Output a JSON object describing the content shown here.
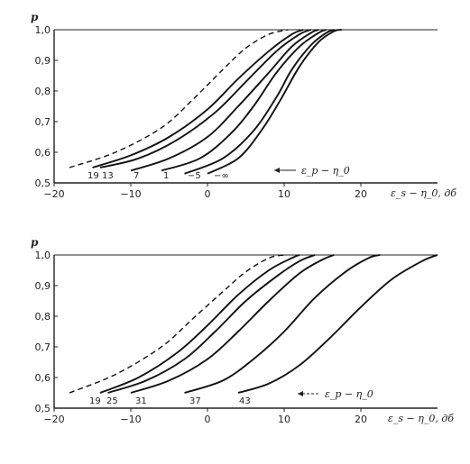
{
  "chart_data": [
    {
      "type": "line",
      "ylabel": "p",
      "xlabel": "ε_s − η_0, дб",
      "legend_text": "ε_p − η_0",
      "xlim": [
        -20,
        30
      ],
      "ylim": [
        0.5,
        1.0
      ],
      "x_ticks": [
        -20,
        -10,
        0,
        10,
        20
      ],
      "x_tick_labels": [
        "−20",
        "−10",
        "0",
        "10",
        "20"
      ],
      "y_ticks": [
        0.5,
        0.6,
        0.7,
        0.8,
        0.9,
        1.0
      ],
      "y_tick_labels": [
        "0,5",
        "0,6",
        "0,7",
        "0,8",
        "0,9",
        "1,0"
      ],
      "series": [
        {
          "label": "",
          "dashed": true,
          "points": [
            [
              -18,
              0.55
            ],
            [
              -12,
              0.6
            ],
            [
              -6,
              0.68
            ],
            [
              -2,
              0.77
            ],
            [
              2,
              0.87
            ],
            [
              5,
              0.94
            ],
            [
              8,
              0.985
            ],
            [
              10.5,
              1.0
            ]
          ]
        },
        {
          "label": "19",
          "dashed": false,
          "points": [
            [
              -15,
              0.55
            ],
            [
              -10,
              0.59
            ],
            [
              -5,
              0.65
            ],
            [
              0,
              0.74
            ],
            [
              4,
              0.84
            ],
            [
              8,
              0.93
            ],
            [
              11,
              0.985
            ],
            [
              12.5,
              1.0
            ]
          ]
        },
        {
          "label": "13",
          "dashed": false,
          "points": [
            [
              -14,
              0.55
            ],
            [
              -9,
              0.58
            ],
            [
              -4,
              0.64
            ],
            [
              1,
              0.73
            ],
            [
              5,
              0.83
            ],
            [
              9,
              0.93
            ],
            [
              12,
              0.985
            ],
            [
              13.5,
              1.0
            ]
          ]
        },
        {
          "label": "7",
          "dashed": false,
          "points": [
            [
              -10,
              0.54
            ],
            [
              -5,
              0.58
            ],
            [
              0,
              0.65
            ],
            [
              4,
              0.75
            ],
            [
              8,
              0.86
            ],
            [
              11,
              0.945
            ],
            [
              13.5,
              0.99
            ],
            [
              14.5,
              1.0
            ]
          ]
        },
        {
          "label": "1",
          "dashed": false,
          "points": [
            [
              -6,
              0.54
            ],
            [
              -1,
              0.58
            ],
            [
              3,
              0.66
            ],
            [
              6,
              0.75
            ],
            [
              9,
              0.86
            ],
            [
              12,
              0.945
            ],
            [
              14.5,
              0.99
            ],
            [
              15.5,
              1.0
            ]
          ]
        },
        {
          "label": "−5",
          "dashed": false,
          "points": [
            [
              -3,
              0.53
            ],
            [
              2,
              0.58
            ],
            [
              6,
              0.67
            ],
            [
              9,
              0.78
            ],
            [
              11,
              0.87
            ],
            [
              13.5,
              0.95
            ],
            [
              15.5,
              0.99
            ],
            [
              16.5,
              1.0
            ]
          ]
        },
        {
          "label": "−∞",
          "dashed": false,
          "points": [
            [
              0,
              0.53
            ],
            [
              4,
              0.58
            ],
            [
              7,
              0.67
            ],
            [
              9.5,
              0.77
            ],
            [
              12,
              0.88
            ],
            [
              14.5,
              0.96
            ],
            [
              16.5,
              0.995
            ],
            [
              17.5,
              1.0
            ]
          ]
        }
      ]
    },
    {
      "type": "line",
      "ylabel": "p",
      "xlabel": "ε_s − η_0, дб",
      "legend_text": "ε_p − η_0",
      "xlim": [
        -20,
        30
      ],
      "ylim": [
        0.5,
        1.0
      ],
      "x_ticks": [
        -20,
        -10,
        0,
        10,
        20
      ],
      "x_tick_labels": [
        "−20",
        "−10",
        "0",
        "10",
        "20"
      ],
      "y_ticks": [
        0.5,
        0.6,
        0.7,
        0.8,
        0.9,
        1.0
      ],
      "y_tick_labels": [
        "0,5",
        "0,6",
        "0,7",
        "0,8",
        "0,9",
        "1,0"
      ],
      "series": [
        {
          "label": "",
          "dashed": true,
          "points": [
            [
              -18,
              0.55
            ],
            [
              -12,
              0.61
            ],
            [
              -6,
              0.7
            ],
            [
              -2,
              0.79
            ],
            [
              2,
              0.88
            ],
            [
              5,
              0.945
            ],
            [
              8,
              0.99
            ],
            [
              10,
              1.0
            ]
          ]
        },
        {
          "label": "19",
          "dashed": false,
          "points": [
            [
              -14,
              0.55
            ],
            [
              -9,
              0.6
            ],
            [
              -4,
              0.68
            ],
            [
              0,
              0.77
            ],
            [
              4,
              0.87
            ],
            [
              8,
              0.95
            ],
            [
              11,
              0.99
            ],
            [
              12,
              1.0
            ]
          ]
        },
        {
          "label": "25",
          "dashed": false,
          "points": [
            [
              -13,
              0.55
            ],
            [
              -8,
              0.59
            ],
            [
              -3,
              0.66
            ],
            [
              1,
              0.75
            ],
            [
              5,
              0.85
            ],
            [
              9,
              0.93
            ],
            [
              12,
              0.98
            ],
            [
              14,
              1.0
            ]
          ]
        },
        {
          "label": "31",
          "dashed": false,
          "points": [
            [
              -10,
              0.55
            ],
            [
              -5,
              0.59
            ],
            [
              0,
              0.66
            ],
            [
              4,
              0.75
            ],
            [
              8,
              0.85
            ],
            [
              12,
              0.94
            ],
            [
              15,
              0.985
            ],
            [
              16.5,
              1.0
            ]
          ]
        },
        {
          "label": "37",
          "dashed": false,
          "points": [
            [
              -3,
              0.55
            ],
            [
              2,
              0.59
            ],
            [
              6,
              0.66
            ],
            [
              10,
              0.75
            ],
            [
              14,
              0.86
            ],
            [
              18,
              0.945
            ],
            [
              21,
              0.99
            ],
            [
              22.5,
              1.0
            ]
          ]
        },
        {
          "label": "43",
          "dashed": false,
          "points": [
            [
              4,
              0.55
            ],
            [
              8,
              0.58
            ],
            [
              12,
              0.64
            ],
            [
              16,
              0.73
            ],
            [
              20,
              0.83
            ],
            [
              24,
              0.92
            ],
            [
              28,
              0.98
            ],
            [
              30,
              1.0
            ]
          ]
        }
      ]
    }
  ]
}
